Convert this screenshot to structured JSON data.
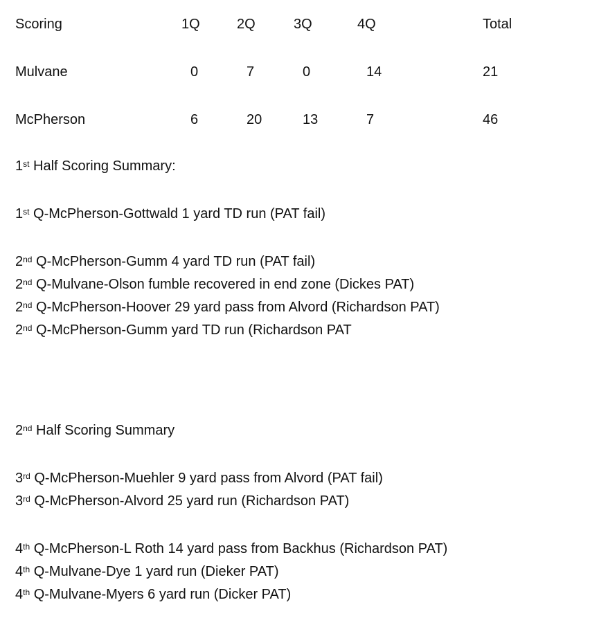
{
  "table": {
    "headers": [
      "Scoring",
      "1Q",
      "2Q",
      "3Q",
      "4Q",
      "Total"
    ],
    "rows": [
      [
        "Mulvane",
        "0",
        "7",
        "0",
        "14",
        "21"
      ],
      [
        "McPherson",
        "6",
        "20",
        "13",
        "7",
        "46"
      ]
    ]
  },
  "first_half": {
    "heading": {
      "num": "1",
      "sup": "st",
      "text": " Half Scoring Summary:"
    },
    "plays": [
      {
        "num": "1",
        "sup": "st",
        "text": " Q-McPherson-Gottwald 1 yard TD run (PAT fail)"
      },
      {
        "num": "2",
        "sup": "nd",
        "text": " Q-McPherson-Gumm 4 yard TD run (PAT fail)"
      },
      {
        "num": "2",
        "sup": "nd",
        "text": " Q-Mulvane-Olson fumble recovered in end zone (Dickes PAT)"
      },
      {
        "num": "2",
        "sup": "nd",
        "text": " Q-McPherson-Hoover 29 yard pass from Alvord (Richardson PAT)"
      },
      {
        "num": "2",
        "sup": "nd",
        "text": " Q-McPherson-Gumm yard TD run (Richardson PAT"
      }
    ]
  },
  "second_half": {
    "heading": {
      "num": "2",
      "sup": "nd",
      "text": " Half Scoring Summary"
    },
    "plays": [
      {
        "num": "3",
        "sup": "rd",
        "text": " Q-McPherson-Muehler 9 yard pass from Alvord (PAT fail)"
      },
      {
        "num": "3",
        "sup": "rd",
        "text": " Q-McPherson-Alvord 25 yard run (Richardson PAT)"
      },
      {
        "num": "4",
        "sup": "th",
        "text": " Q-McPherson-L Roth 14 yard pass from Backhus (Richardson PAT)"
      },
      {
        "num": "4",
        "sup": "th",
        "text": " Q-Mulvane-Dye 1 yard run (Dieker PAT)"
      },
      {
        "num": "4",
        "sup": "th",
        "text": " Q-Mulvane-Myers 6 yard run (Dicker PAT)"
      }
    ]
  }
}
